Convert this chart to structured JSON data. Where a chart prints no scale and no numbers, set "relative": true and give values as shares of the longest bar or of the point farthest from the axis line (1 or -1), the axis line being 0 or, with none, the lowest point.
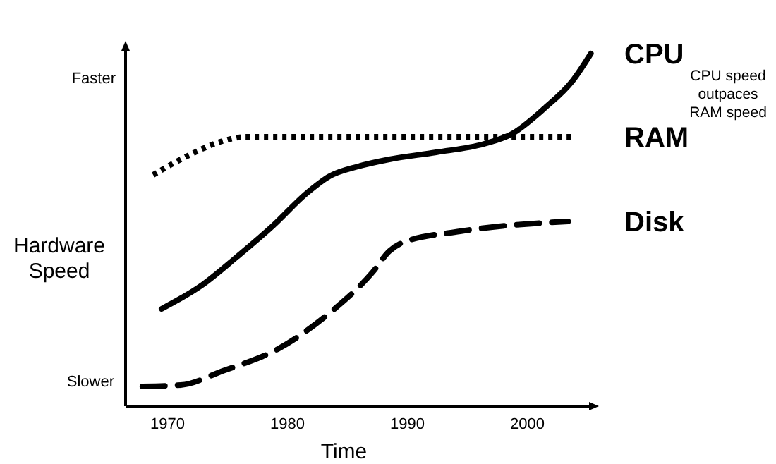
{
  "chart_data": {
    "type": "line",
    "relative": true,
    "xlabel": "Time",
    "ylabel": "Hardware Speed",
    "annotations": [
      "Faster",
      "Slower",
      "CPU speed outpaces RAM speed"
    ],
    "xlim": [
      1966.5,
      2005.5
    ],
    "xticks": [
      1970,
      1980,
      1990,
      2000
    ],
    "grid": false,
    "series": [
      {
        "name": "CPU",
        "color": "#000000",
        "line_style": "solid",
        "x": [
          1969.5,
          1972.9,
          1975.8,
          1978.8,
          1981.6,
          1983.5,
          1985.9,
          1988.5,
          1992.4,
          1996.4,
          1998.7,
          2001.4,
          2003.8,
          2005.3
        ],
        "values": [
          0.276,
          0.344,
          0.424,
          0.512,
          0.604,
          0.652,
          0.68,
          0.7,
          0.72,
          0.744,
          0.772,
          0.844,
          0.924,
          1.0
        ]
      },
      {
        "name": "RAM",
        "color": "#000000",
        "line_style": "dotted",
        "x": [
          1968.8,
          1971.8,
          1974.6,
          1976.5,
          2003.8
        ],
        "values": [
          0.656,
          0.712,
          0.752,
          0.764,
          0.764
        ]
      },
      {
        "name": "Disk",
        "color": "#000000",
        "line_style": "dashed",
        "x": [
          1967.9,
          1971.1,
          1974.6,
          1979.3,
          1983.5,
          1987.1,
          1988.5,
          1989.6,
          1994.4,
          2003.4
        ],
        "values": [
          0.056,
          0.06,
          0.1,
          0.164,
          0.264,
          0.38,
          0.44,
          0.464,
          0.496,
          0.524
        ]
      }
    ]
  }
}
